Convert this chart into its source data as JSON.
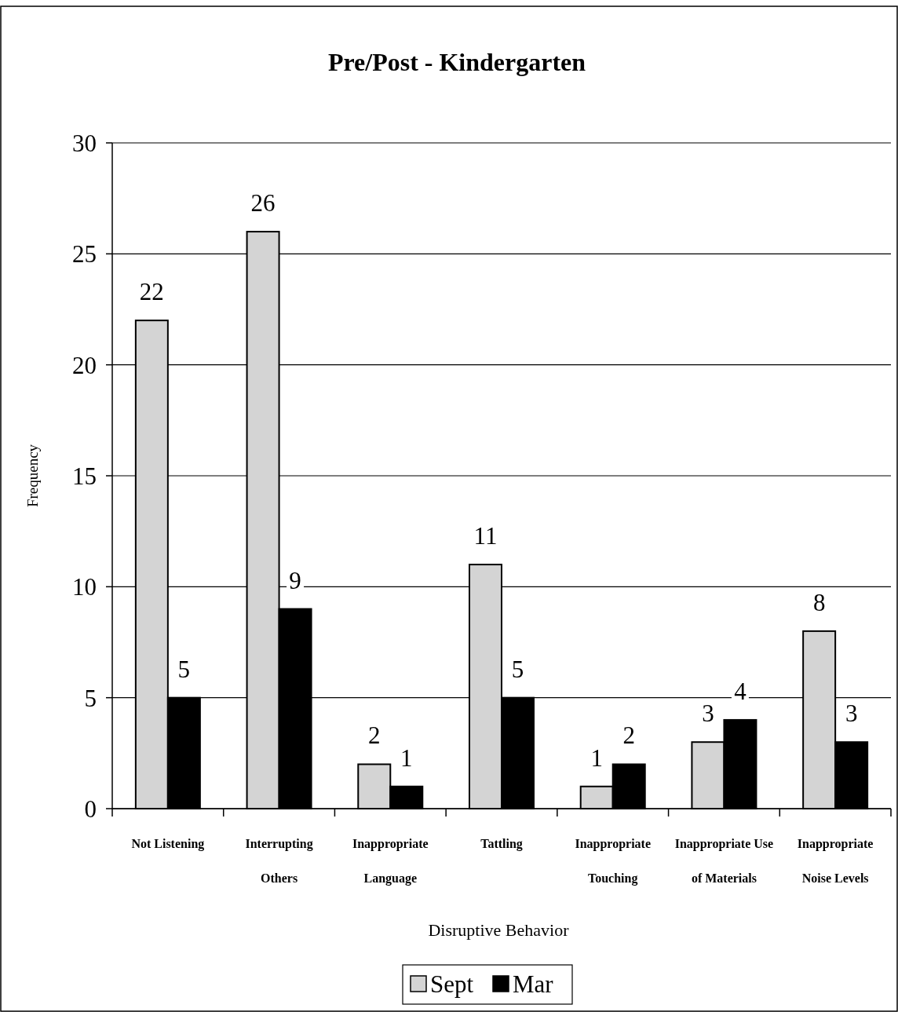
{
  "chart_data": {
    "type": "bar",
    "title": "Pre/Post - Kindergarten",
    "xlabel": "Disruptive Behavior",
    "ylabel": "Frequency",
    "categories": [
      "Not Listening",
      "Interrupting Others",
      "Inappropriate Language",
      "Tattling",
      "Inappropriate Touching",
      "Inappropriate Use of Materials",
      "Inappropriate Noise Levels"
    ],
    "series": [
      {
        "name": "Sept",
        "color": "#d4d4d4",
        "values": [
          22,
          26,
          2,
          11,
          1,
          3,
          8
        ]
      },
      {
        "name": "Mar",
        "color": "#000000",
        "values": [
          5,
          9,
          1,
          5,
          2,
          4,
          3
        ]
      }
    ],
    "ylim": [
      0,
      30
    ],
    "yticks": [
      0,
      5,
      10,
      15,
      20,
      25,
      30
    ],
    "grid": "y",
    "legend": "bottom",
    "data_labels": true
  }
}
